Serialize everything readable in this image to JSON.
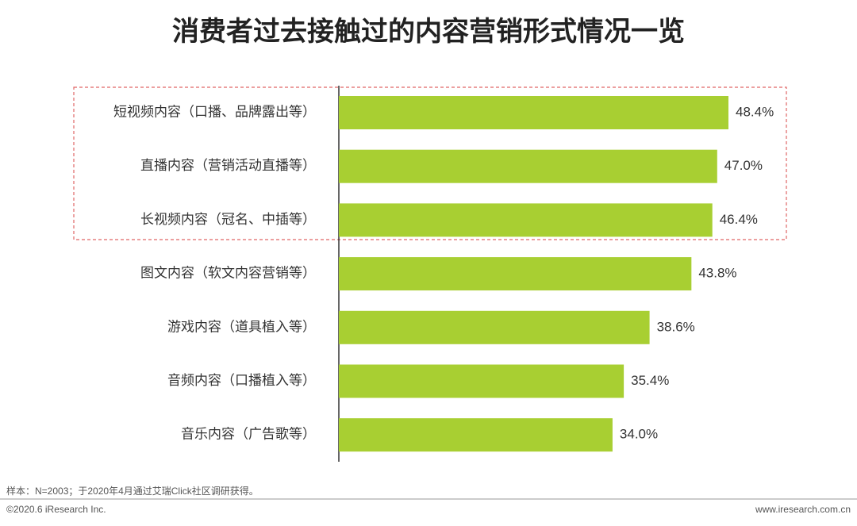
{
  "chart_data": {
    "type": "hbar",
    "title": "消费者过去接触过的内容营销形式情况一览",
    "categories": [
      "短视频内容（口播、品牌露出等）",
      "直播内容（营销活动直播等）",
      "长视频内容（冠名、中插等）",
      "图文内容（软文内容营销等）",
      "游戏内容（道具植入等）",
      "音频内容（口播植入等）",
      "音乐内容（广告歌等）"
    ],
    "values": [
      48.4,
      47.0,
      46.4,
      43.8,
      38.6,
      35.4,
      34.0
    ],
    "value_labels": [
      "48.4%",
      "47.0%",
      "46.4%",
      "43.8%",
      "38.6%",
      "35.4%",
      "34.0%"
    ],
    "color": "#a8cf32",
    "note": "样本：N=2003；于2020年4月通过艾瑞Click社区调研获得。",
    "copyright": "©2020.6 iResearch Inc.",
    "website": "www.iresearch.com.cn"
  }
}
